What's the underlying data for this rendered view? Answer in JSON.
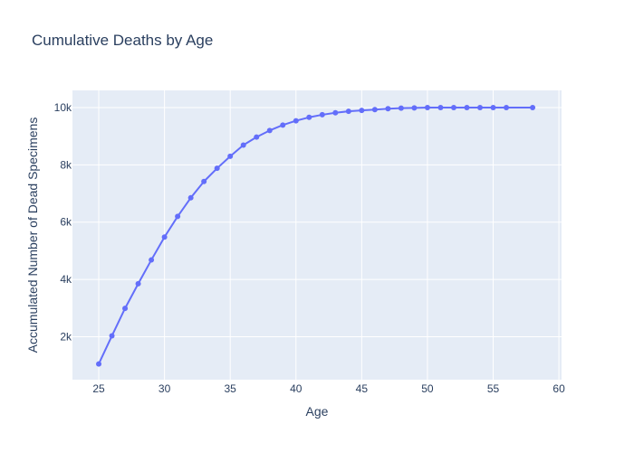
{
  "chart_data": {
    "type": "line",
    "title": "Cumulative Deaths by Age",
    "xlabel": "Age",
    "ylabel": "Accumulated Number of Dead Specimens",
    "xlim": [
      23,
      60.2
    ],
    "ylim": [
      500,
      10600
    ],
    "xticks": [
      25,
      30,
      35,
      40,
      45,
      50,
      55,
      60
    ],
    "yticks": [
      2000,
      4000,
      6000,
      8000,
      10000
    ],
    "ytick_labels": [
      "2k",
      "4k",
      "6k",
      "8k",
      "10k"
    ],
    "grid": true,
    "legend": "none",
    "series": [
      {
        "color": "#636efa",
        "x": [
          25,
          26,
          27,
          28,
          29,
          30,
          31,
          32,
          33,
          34,
          35,
          36,
          37,
          38,
          39,
          40,
          41,
          42,
          43,
          44,
          45,
          46,
          47,
          48,
          49,
          50,
          51,
          52,
          53,
          54,
          55,
          56,
          58
        ],
        "y": [
          1050,
          2030,
          2990,
          3850,
          4680,
          5480,
          6200,
          6850,
          7420,
          7880,
          8300,
          8690,
          8970,
          9200,
          9390,
          9540,
          9660,
          9750,
          9820,
          9870,
          9900,
          9930,
          9960,
          9980,
          9990,
          10000,
          10000,
          10000,
          10000,
          10000,
          10000,
          10000,
          10000
        ]
      }
    ]
  }
}
